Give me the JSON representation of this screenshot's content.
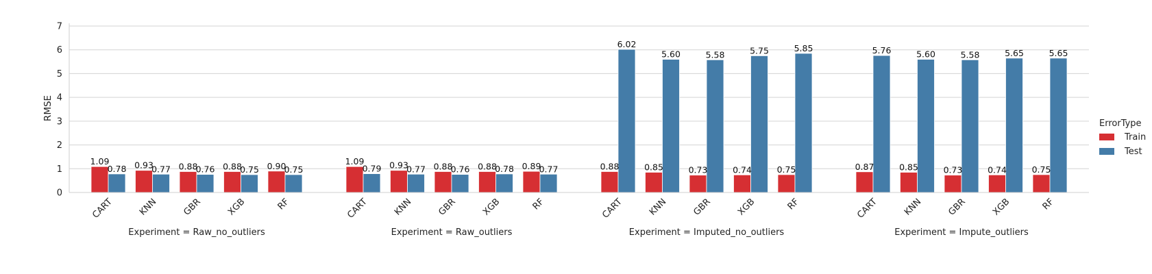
{
  "chart_data": {
    "type": "bar",
    "ylabel": "RMSE",
    "ylim": [
      0,
      7
    ],
    "yticks": [
      0,
      1,
      2,
      3,
      4,
      5,
      6,
      7
    ],
    "grid": "horizontal",
    "categories": [
      "CART",
      "KNN",
      "GBR",
      "XGB",
      "RF"
    ],
    "legend": {
      "title": "ErrorType",
      "position": "right",
      "entries": [
        {
          "name": "Train",
          "color": "#d62f33"
        },
        {
          "name": "Test",
          "color": "#447ca8"
        }
      ]
    },
    "panels": [
      {
        "label": "Experiment = Raw_no_outliers",
        "series": [
          {
            "name": "Train",
            "values": [
              1.09,
              0.93,
              0.88,
              0.88,
              0.9
            ],
            "labels": [
              "1.09",
              "0.93",
              "0.88",
              "0.88",
              "0.90"
            ]
          },
          {
            "name": "Test",
            "values": [
              0.78,
              0.77,
              0.76,
              0.75,
              0.75
            ],
            "labels": [
              "0.78",
              "0.77",
              "0.76",
              "0.75",
              "0.75"
            ]
          }
        ]
      },
      {
        "label": "Experiment = Raw_outliers",
        "series": [
          {
            "name": "Train",
            "values": [
              1.09,
              0.93,
              0.88,
              0.88,
              0.89
            ],
            "labels": [
              "1.09",
              "0.93",
              "0.88",
              "0.88",
              "0.89"
            ]
          },
          {
            "name": "Test",
            "values": [
              0.79,
              0.77,
              0.76,
              0.78,
              0.77
            ],
            "labels": [
              "0.79",
              "0.77",
              "0.76",
              "0.78",
              "0.77"
            ]
          }
        ]
      },
      {
        "label": "Experiment = Imputed_no_outliers",
        "series": [
          {
            "name": "Train",
            "values": [
              0.88,
              0.85,
              0.73,
              0.74,
              0.75
            ],
            "labels": [
              "0.88",
              "0.85",
              "0.73",
              "0.74",
              "0.75"
            ]
          },
          {
            "name": "Test",
            "values": [
              6.02,
              5.6,
              5.58,
              5.75,
              5.85
            ],
            "labels": [
              "6.02",
              "5.60",
              "5.58",
              "5.75",
              "5.85"
            ]
          }
        ]
      },
      {
        "label": "Experiment = Impute_outliers",
        "series": [
          {
            "name": "Train",
            "values": [
              0.87,
              0.85,
              0.73,
              0.74,
              0.75
            ],
            "labels": [
              "0.87",
              "0.85",
              "0.73",
              "0.74",
              "0.75"
            ]
          },
          {
            "name": "Test",
            "values": [
              5.76,
              5.6,
              5.58,
              5.65,
              5.65
            ],
            "labels": [
              "5.76",
              "5.60",
              "5.58",
              "5.65",
              "5.65"
            ]
          }
        ]
      }
    ]
  }
}
